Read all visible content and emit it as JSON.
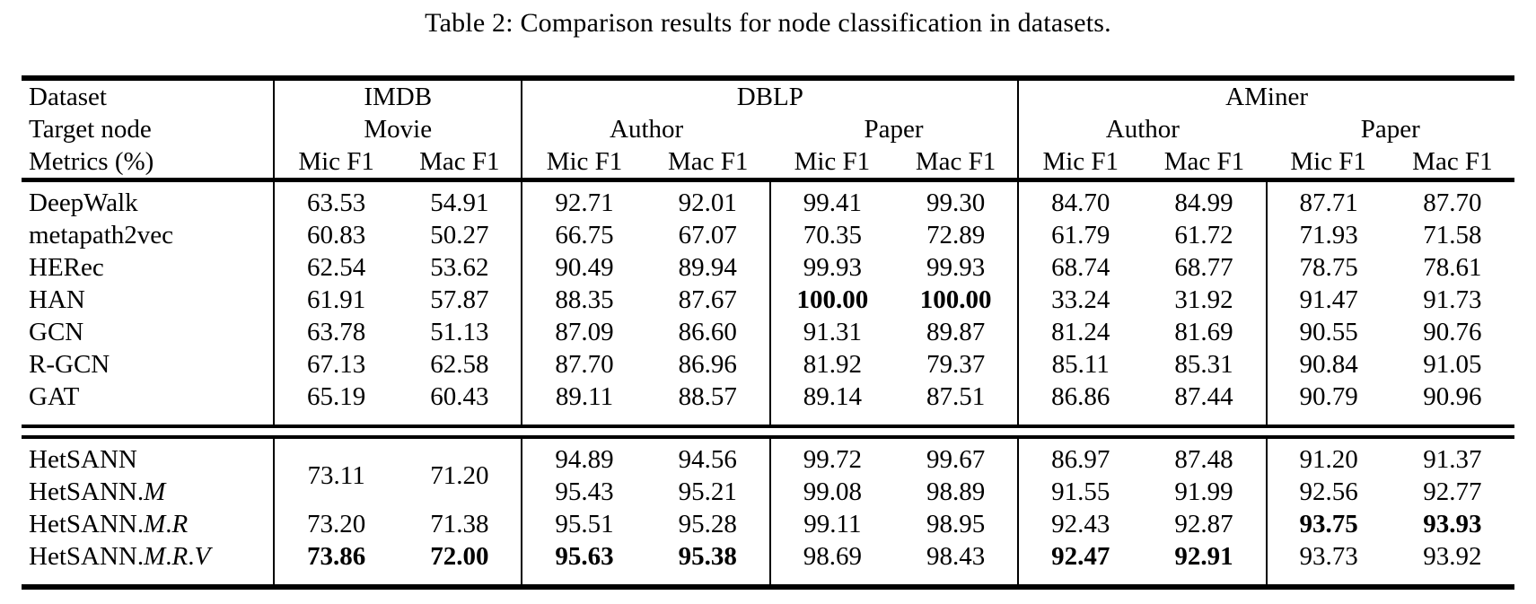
{
  "title": "Table 2: Comparison results for node classification in datasets.",
  "colors": {
    "text": "#000000",
    "background": "#ffffff",
    "rule": "#000000"
  },
  "table": {
    "header_rows": [
      {
        "label": "Dataset",
        "cells": [
          {
            "t": "IMDB",
            "span": 2
          },
          {
            "t": "DBLP",
            "span": 4
          },
          {
            "t": "AMiner",
            "span": 4
          }
        ]
      },
      {
        "label": "Target node",
        "cells": [
          {
            "t": "Movie",
            "span": 2
          },
          {
            "t": "Author",
            "span": 2
          },
          {
            "t": "Paper",
            "span": 2
          },
          {
            "t": "Author",
            "span": 2
          },
          {
            "t": "Paper",
            "span": 2
          }
        ]
      },
      {
        "label": "Metrics (%)",
        "cells": [
          {
            "t": "Mic F1"
          },
          {
            "t": "Mac F1"
          },
          {
            "t": "Mic F1"
          },
          {
            "t": "Mac F1"
          },
          {
            "t": "Mic F1"
          },
          {
            "t": "Mac F1"
          },
          {
            "t": "Mic F1"
          },
          {
            "t": "Mac F1"
          },
          {
            "t": "Mic F1"
          },
          {
            "t": "Mac F1"
          }
        ]
      }
    ],
    "sections": [
      {
        "rows": [
          {
            "label": "DeepWalk",
            "cells": [
              "63.53",
              "54.91",
              "92.71",
              "92.01",
              "99.41",
              "99.30",
              "84.70",
              "84.99",
              "87.71",
              "87.70"
            ]
          },
          {
            "label": "metapath2vec",
            "cells": [
              "60.83",
              "50.27",
              "66.75",
              "67.07",
              "70.35",
              "72.89",
              "61.79",
              "61.72",
              "71.93",
              "71.58"
            ]
          },
          {
            "label": "HERec",
            "cells": [
              "62.54",
              "53.62",
              "90.49",
              "89.94",
              "99.93",
              "99.93",
              "68.74",
              "68.77",
              "78.75",
              "78.61"
            ]
          },
          {
            "label": "HAN",
            "cells": [
              "61.91",
              "57.87",
              "88.35",
              "87.67",
              {
                "t": "100.00",
                "b": true
              },
              {
                "t": "100.00",
                "b": true
              },
              "33.24",
              "31.92",
              "91.47",
              "91.73"
            ]
          },
          {
            "label": "GCN",
            "cells": [
              "63.78",
              "51.13",
              "87.09",
              "86.60",
              "91.31",
              "89.87",
              "81.24",
              "81.69",
              "90.55",
              "90.76"
            ]
          },
          {
            "label": "R-GCN",
            "cells": [
              "67.13",
              "62.58",
              "87.70",
              "86.96",
              "81.92",
              "79.37",
              "85.11",
              "85.31",
              "90.84",
              "91.05"
            ]
          },
          {
            "label": "GAT",
            "cells": [
              "65.19",
              "60.43",
              "89.11",
              "88.57",
              "89.14",
              "87.51",
              "86.86",
              "87.44",
              "90.79",
              "90.96"
            ]
          }
        ]
      },
      {
        "rows": [
          {
            "label": "HetSANN",
            "cells": [
              {
                "t": "73.11",
                "rs": 2
              },
              {
                "t": "71.20",
                "rs": 2
              },
              "94.89",
              "94.56",
              "99.72",
              "99.67",
              "86.97",
              "87.48",
              "91.20",
              "91.37"
            ]
          },
          {
            "label": "HetSANN.*M*",
            "cells": [
              null,
              null,
              "95.43",
              "95.21",
              "99.08",
              "98.89",
              "91.55",
              "91.99",
              "92.56",
              "92.77"
            ]
          },
          {
            "label": "HetSANN.*M*.*R*",
            "cells": [
              "73.20",
              "71.38",
              "95.51",
              "95.28",
              "99.11",
              "98.95",
              "92.43",
              "92.87",
              {
                "t": "93.75",
                "b": true
              },
              {
                "t": "93.93",
                "b": true
              }
            ]
          },
          {
            "label": "HetSANN.*M*.*R*.*V*",
            "cells": [
              {
                "t": "73.86",
                "b": true
              },
              {
                "t": "72.00",
                "b": true
              },
              {
                "t": "95.63",
                "b": true
              },
              {
                "t": "95.38",
                "b": true
              },
              "98.69",
              "98.43",
              {
                "t": "92.47",
                "b": true
              },
              {
                "t": "92.91",
                "b": true
              },
              "93.73",
              "93.92"
            ]
          }
        ]
      }
    ]
  }
}
